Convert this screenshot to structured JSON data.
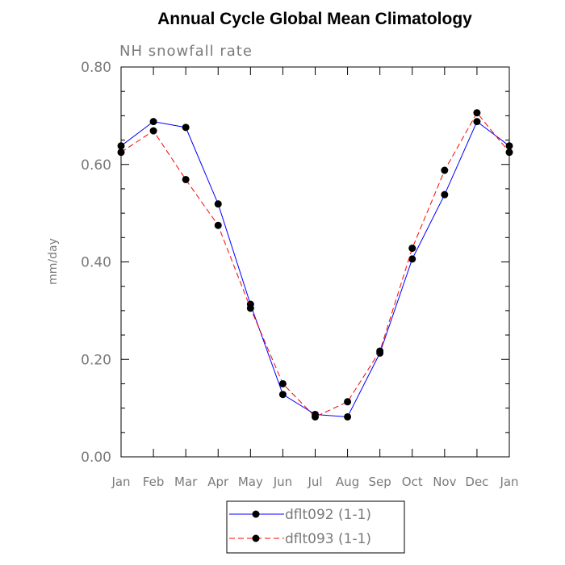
{
  "chart_data": {
    "type": "line",
    "title": "Annual Cycle Global Mean Climatology",
    "subtitle": "NH snowfall rate",
    "xlabel": "",
    "ylabel": "mm/day",
    "categories": [
      "Jan",
      "Feb",
      "Mar",
      "Apr",
      "May",
      "Jun",
      "Jul",
      "Aug",
      "Sep",
      "Oct",
      "Nov",
      "Dec",
      "Jan"
    ],
    "ylim": [
      0,
      0.8
    ],
    "yticks": [
      "0.00",
      "0.20",
      "0.40",
      "0.60",
      "0.80"
    ],
    "grid": false,
    "legend_position": "bottom",
    "series": [
      {
        "name": "dflt092 (1-1)",
        "color": "#0000ff",
        "dash": "solid",
        "values": [
          0.638,
          0.688,
          0.676,
          0.519,
          0.313,
          0.128,
          0.087,
          0.082,
          0.213,
          0.406,
          0.538,
          0.688,
          0.638
        ]
      },
      {
        "name": "dflt093 (1-1)",
        "color": "#ff0000",
        "dash": "dashed",
        "values": [
          0.625,
          0.669,
          0.569,
          0.475,
          0.305,
          0.15,
          0.082,
          0.113,
          0.217,
          0.428,
          0.588,
          0.706,
          0.625
        ]
      }
    ]
  }
}
